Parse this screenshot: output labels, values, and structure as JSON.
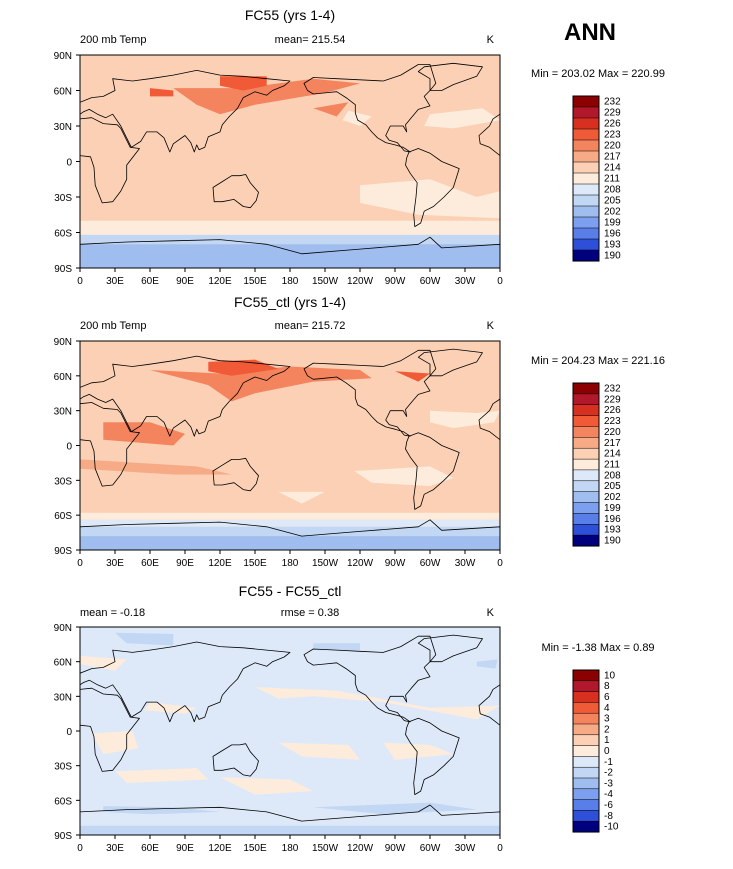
{
  "season_label": "ANN",
  "chart_data": [
    {
      "type": "heatmap",
      "title": "FC55 (yrs 1-4)",
      "left_label": "200 mb Temp",
      "center_label": "mean= 215.54",
      "units": "K",
      "minmax": "Min = 203.02 Max = 220.99",
      "x_ticks": [
        "0",
        "30E",
        "60E",
        "90E",
        "120E",
        "150E",
        "180",
        "150W",
        "120W",
        "90W",
        "60W",
        "30W",
        "0"
      ],
      "y_ticks": [
        "90N",
        "60N",
        "30N",
        "0",
        "30S",
        "60S",
        "90S"
      ],
      "levels": [
        "232",
        "229",
        "226",
        "223",
        "220",
        "217",
        "214",
        "211",
        "208",
        "205",
        "202",
        "199",
        "196",
        "193",
        "190"
      ],
      "colors": [
        "#8b0000",
        "#b2182b",
        "#d73020",
        "#f05a37",
        "#f4845e",
        "#f7aa86",
        "#fbd0b5",
        "#fdecdc",
        "#dde9f8",
        "#c1d7f3",
        "#9fbdee",
        "#7c9ff0",
        "#5a7ee8",
        "#2e4fd8",
        "#00007f"
      ]
    },
    {
      "type": "heatmap",
      "title": "FC55_ctl (yrs 1-4)",
      "left_label": "200 mb Temp",
      "center_label": "mean= 215.72",
      "units": "K",
      "minmax": "Min = 204.23 Max = 221.16",
      "x_ticks": [
        "0",
        "30E",
        "60E",
        "90E",
        "120E",
        "150E",
        "180",
        "150W",
        "120W",
        "90W",
        "60W",
        "30W",
        "0"
      ],
      "y_ticks": [
        "90N",
        "60N",
        "30N",
        "0",
        "30S",
        "60S",
        "90S"
      ],
      "levels": [
        "232",
        "229",
        "226",
        "223",
        "220",
        "217",
        "214",
        "211",
        "208",
        "205",
        "202",
        "199",
        "196",
        "193",
        "190"
      ],
      "colors": [
        "#8b0000",
        "#b2182b",
        "#d73020",
        "#f05a37",
        "#f4845e",
        "#f7aa86",
        "#fbd0b5",
        "#fdecdc",
        "#dde9f8",
        "#c1d7f3",
        "#9fbdee",
        "#7c9ff0",
        "#5a7ee8",
        "#2e4fd8",
        "#00007f"
      ]
    },
    {
      "type": "heatmap",
      "title": "FC55 - FC55_ctl",
      "left_label": "mean = -0.18",
      "center_label": "rmse = 0.38",
      "units": "K",
      "minmax": "Min = -1.38 Max = 0.89",
      "x_ticks": [
        "0",
        "30E",
        "60E",
        "90E",
        "120E",
        "150E",
        "180",
        "150W",
        "120W",
        "90W",
        "60W",
        "30W",
        "0"
      ],
      "y_ticks": [
        "90N",
        "60N",
        "30N",
        "0",
        "30S",
        "60S",
        "90S"
      ],
      "levels": [
        "10",
        "8",
        "6",
        "4",
        "3",
        "2",
        "1",
        "0",
        "-1",
        "-2",
        "-3",
        "-4",
        "-6",
        "-8",
        "-10"
      ],
      "colors": [
        "#8b0000",
        "#b2182b",
        "#d73020",
        "#f05a37",
        "#f4845e",
        "#f7aa86",
        "#fbd0b5",
        "#fdecdc",
        "#dde9f8",
        "#c1d7f3",
        "#9fbdee",
        "#7c9ff0",
        "#5a7ee8",
        "#2e4fd8",
        "#00007f"
      ]
    }
  ]
}
